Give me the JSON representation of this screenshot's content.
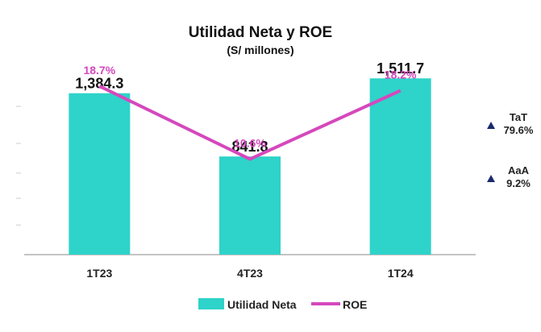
{
  "chart_data": {
    "type": "bar",
    "title": "Utilidad Neta y ROE",
    "subtitle": "(S/ millones)",
    "categories": [
      "1T23",
      "4T23",
      "1T24"
    ],
    "series": [
      {
        "name": "Utilidad Neta",
        "kind": "bar",
        "values": [
          1384.3,
          841.8,
          1511.7
        ],
        "labels": [
          "1,384.3",
          "841.8",
          "1,511.7"
        ]
      },
      {
        "name": "ROE",
        "kind": "line",
        "unit": "%",
        "values": [
          18.7,
          10.6,
          18.2
        ],
        "labels": [
          "18.7%",
          "10.6%",
          "18.2%"
        ]
      }
    ],
    "ylim_bar": [
      0,
      1700
    ],
    "ylim_line": [
      0,
      22
    ],
    "legend_position": "bottom",
    "annotations": [
      {
        "label": "TaT",
        "value": "79.6%",
        "direction": "up"
      },
      {
        "label": "AaA",
        "value": "9.2%",
        "direction": "up"
      }
    ],
    "colors": {
      "bar": "#2ed3c9",
      "line": "#d548bd",
      "arrow": "#1a2a6c",
      "axis": "#888888"
    }
  }
}
